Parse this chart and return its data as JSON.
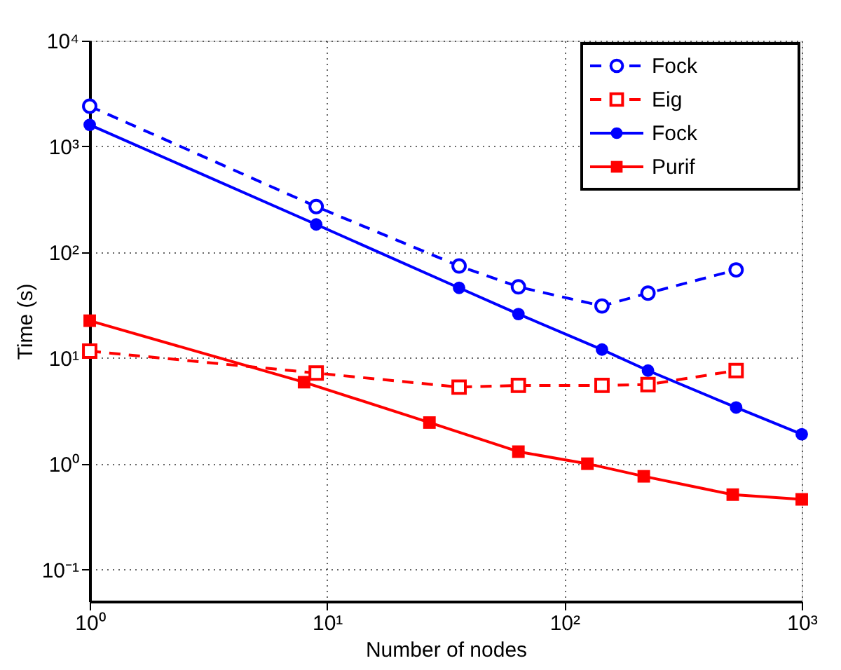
{
  "chart_data": {
    "type": "line",
    "xlabel": "Number of nodes",
    "ylabel": "Time (s)",
    "log": "xy",
    "grid": true,
    "legend": "top right",
    "xlim": [
      1,
      1000
    ],
    "ylim": [
      0.05,
      10000
    ],
    "xticks": [
      {
        "value": 1,
        "label": "10⁰"
      },
      {
        "value": 10,
        "label": "10¹"
      },
      {
        "value": 100,
        "label": "10²"
      },
      {
        "value": 1000,
        "label": "10³"
      }
    ],
    "yticks": [
      {
        "value": 0.1,
        "label": "10⁻¹"
      },
      {
        "value": 1,
        "label": "10⁰"
      },
      {
        "value": 10,
        "label": "10¹"
      },
      {
        "value": 100,
        "label": "10²"
      },
      {
        "value": 1000,
        "label": "10³"
      },
      {
        "value": 10000,
        "label": "10⁴"
      }
    ],
    "series": [
      {
        "name": "Fock",
        "color": "#0000ff",
        "marker": "circle",
        "line_style": "dashed",
        "x": [
          1,
          9,
          36,
          64,
          144,
          225,
          529
        ],
        "values": [
          2400,
          270,
          74,
          47,
          31,
          41,
          68
        ]
      },
      {
        "name": "Eig",
        "color": "#ff0000",
        "marker": "square",
        "line_style": "dashed",
        "x": [
          1,
          9,
          36,
          64,
          144,
          225,
          529
        ],
        "values": [
          11.6,
          7.2,
          5.3,
          5.5,
          5.5,
          5.6,
          7.6
        ]
      },
      {
        "name": "Fock",
        "color": "#0000ff",
        "marker": "circle",
        "line_style": "solid",
        "x": [
          1,
          9,
          36,
          64,
          144,
          225,
          529,
          1000
        ],
        "values": [
          1600,
          183,
          46,
          26,
          12,
          7.6,
          3.4,
          1.9
        ]
      },
      {
        "name": "Purif",
        "color": "#ff0000",
        "marker": "square",
        "line_style": "solid",
        "x": [
          1,
          8,
          27,
          64,
          125,
          216,
          512,
          1000
        ],
        "values": [
          22.5,
          5.9,
          2.45,
          1.3,
          1.0,
          0.76,
          0.51,
          0.46
        ]
      }
    ]
  }
}
